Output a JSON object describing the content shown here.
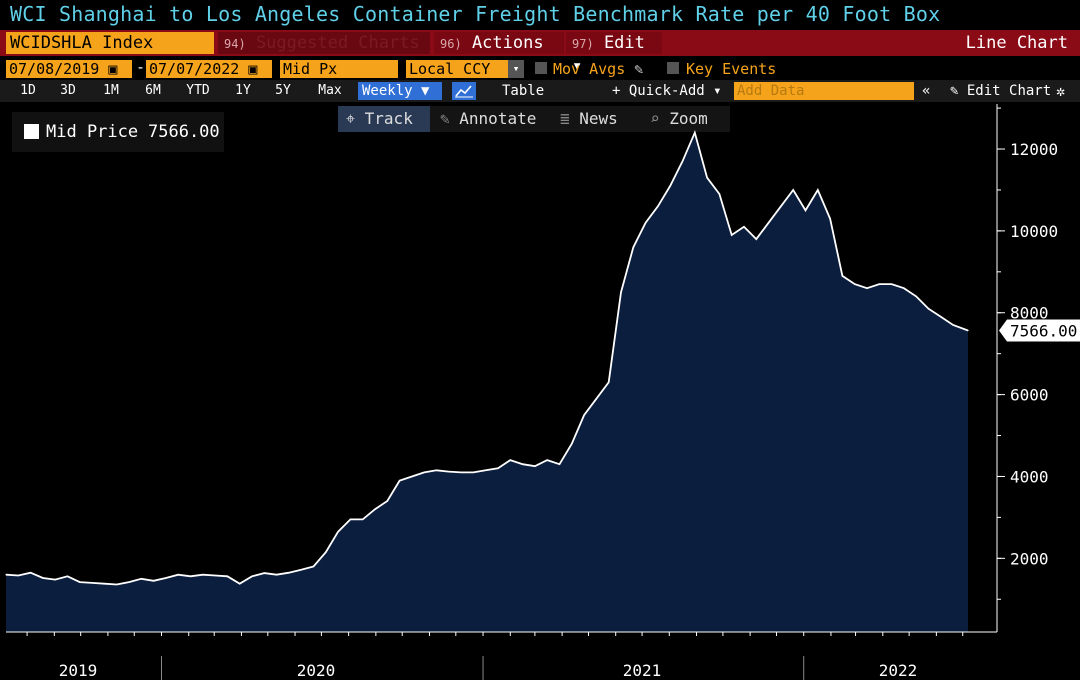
{
  "header": {
    "title": "WCI Shanghai to Los Angeles Container Freight Benchmark Rate per 40 Foot Box",
    "ticker": "WCIDSHLA Index",
    "suggested_num": "94)",
    "suggested": "Suggested Charts",
    "actions_num": "96)",
    "actions": "Actions ▾",
    "edit_num": "97)",
    "edit": "Edit ▾",
    "chart_type_label": "Line Chart"
  },
  "controls": {
    "start_date": "07/08/2019",
    "end_date": "07/07/2022",
    "date_separator": "-",
    "price_field": "Mid Px",
    "currency": "Local CCY",
    "mov_avgs": "Mov Avgs",
    "key_events": "Key Events",
    "timeframes": [
      "1D",
      "3D",
      "1M",
      "6M",
      "YTD",
      "1Y",
      "5Y",
      "Max"
    ],
    "frequency": "Weekly ▼",
    "table": "Table",
    "quick_add": "+ Quick-Add ▾",
    "add_data_placeholder": "Add Data",
    "rewind": "«",
    "edit_chart": "Edit Chart",
    "track": "Track",
    "annotate": "Annotate",
    "news": "News",
    "zoom": "Zoom"
  },
  "legend": {
    "name": "Mid Price",
    "value": "7566.00"
  },
  "colors": {
    "title": "#5fd0e8",
    "area_fill": "#0c1e3d",
    "line": "#ffffff",
    "menu_bar": "#8a0a16",
    "field": "#f5a31a",
    "active_button": "#2f6fd6"
  },
  "chart_data": {
    "type": "area",
    "series": [
      {
        "name": "Mid Price",
        "last_value_label": "7566.00",
        "points": [
          [
            "2019-07-08",
            1600
          ],
          [
            "2019-07-22",
            1580
          ],
          [
            "2019-08-05",
            1650
          ],
          [
            "2019-08-19",
            1520
          ],
          [
            "2019-09-02",
            1480
          ],
          [
            "2019-09-16",
            1560
          ],
          [
            "2019-09-30",
            1420
          ],
          [
            "2019-10-14",
            1400
          ],
          [
            "2019-10-28",
            1380
          ],
          [
            "2019-11-11",
            1360
          ],
          [
            "2019-11-25",
            1420
          ],
          [
            "2019-12-09",
            1500
          ],
          [
            "2019-12-23",
            1450
          ],
          [
            "2020-01-06",
            1520
          ],
          [
            "2020-01-20",
            1600
          ],
          [
            "2020-02-03",
            1560
          ],
          [
            "2020-02-17",
            1600
          ],
          [
            "2020-03-02",
            1580
          ],
          [
            "2020-03-16",
            1560
          ],
          [
            "2020-03-30",
            1380
          ],
          [
            "2020-04-13",
            1560
          ],
          [
            "2020-04-27",
            1640
          ],
          [
            "2020-05-11",
            1600
          ],
          [
            "2020-05-25",
            1650
          ],
          [
            "2020-06-08",
            1720
          ],
          [
            "2020-06-22",
            1800
          ],
          [
            "2020-07-06",
            2150
          ],
          [
            "2020-07-20",
            2650
          ],
          [
            "2020-08-03",
            2950
          ],
          [
            "2020-08-17",
            2950
          ],
          [
            "2020-08-31",
            3200
          ],
          [
            "2020-09-14",
            3400
          ],
          [
            "2020-09-28",
            3900
          ],
          [
            "2020-10-12",
            4000
          ],
          [
            "2020-10-26",
            4100
          ],
          [
            "2020-11-09",
            4150
          ],
          [
            "2020-11-23",
            4120
          ],
          [
            "2020-12-07",
            4100
          ],
          [
            "2020-12-21",
            4100
          ],
          [
            "2021-01-04",
            4150
          ],
          [
            "2021-01-18",
            4200
          ],
          [
            "2021-02-01",
            4400
          ],
          [
            "2021-02-15",
            4300
          ],
          [
            "2021-03-01",
            4250
          ],
          [
            "2021-03-15",
            4400
          ],
          [
            "2021-03-29",
            4300
          ],
          [
            "2021-04-12",
            4800
          ],
          [
            "2021-04-26",
            5500
          ],
          [
            "2021-05-10",
            5900
          ],
          [
            "2021-05-24",
            6300
          ],
          [
            "2021-06-07",
            8500
          ],
          [
            "2021-06-21",
            9600
          ],
          [
            "2021-07-05",
            10200
          ],
          [
            "2021-07-19",
            10600
          ],
          [
            "2021-08-02",
            11100
          ],
          [
            "2021-08-16",
            11700
          ],
          [
            "2021-08-30",
            12400
          ],
          [
            "2021-09-13",
            11300
          ],
          [
            "2021-09-27",
            10900
          ],
          [
            "2021-10-11",
            9900
          ],
          [
            "2021-10-25",
            10100
          ],
          [
            "2021-11-08",
            9800
          ],
          [
            "2021-11-22",
            10200
          ],
          [
            "2021-12-06",
            10600
          ],
          [
            "2021-12-20",
            11000
          ],
          [
            "2022-01-03",
            10500
          ],
          [
            "2022-01-17",
            11000
          ],
          [
            "2022-01-31",
            10300
          ],
          [
            "2022-02-14",
            8900
          ],
          [
            "2022-02-28",
            8700
          ],
          [
            "2022-03-14",
            8600
          ],
          [
            "2022-03-28",
            8700
          ],
          [
            "2022-04-11",
            8700
          ],
          [
            "2022-04-25",
            8600
          ],
          [
            "2022-05-09",
            8400
          ],
          [
            "2022-05-23",
            8100
          ],
          [
            "2022-06-06",
            7900
          ],
          [
            "2022-06-20",
            7700
          ],
          [
            "2022-07-07",
            7566
          ]
        ]
      }
    ],
    "yticks": [
      2000,
      4000,
      6000,
      8000,
      10000,
      12000
    ],
    "xticks": [
      "2019",
      "2020",
      "2021",
      "2022"
    ],
    "ylim": [
      200,
      13100
    ],
    "axis_side": "right",
    "grid": false,
    "legend_position": "top-left"
  }
}
